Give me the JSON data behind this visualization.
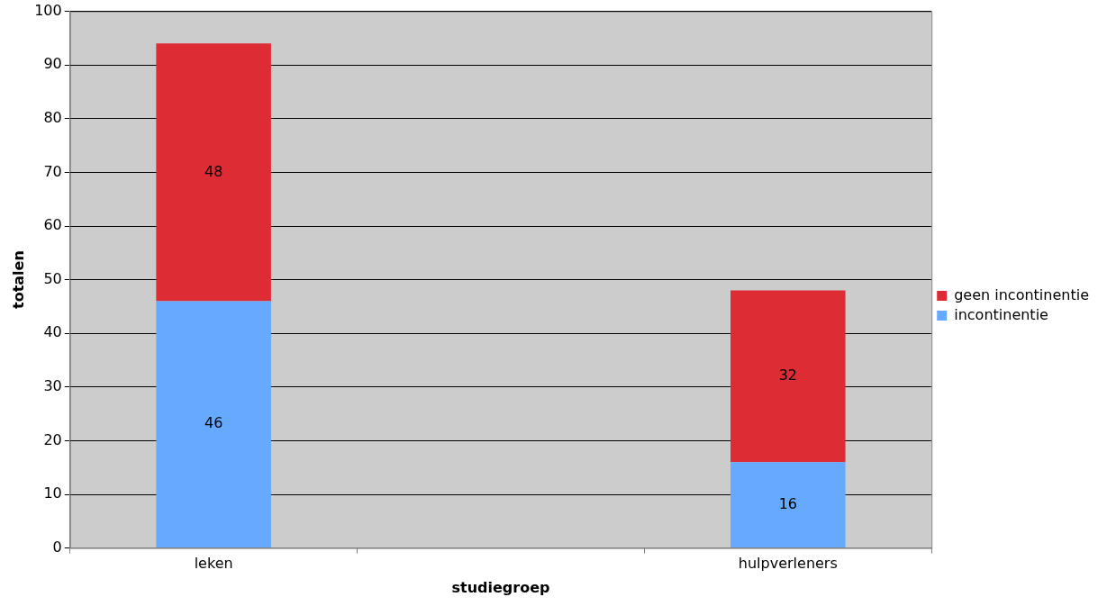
{
  "chart_data": {
    "type": "bar",
    "xlabel": "studiegroep",
    "ylabel": "totalen",
    "categories": [
      "leken",
      null,
      "hulpverleners"
    ],
    "series": [
      {
        "name": "incontinentie",
        "color": "#66aaff",
        "values": [
          46,
          null,
          16
        ]
      },
      {
        "name": "geen incontinentie",
        "color": "#dd2c34",
        "values": [
          48,
          null,
          32
        ]
      }
    ],
    "stacked": true,
    "ylim": [
      0,
      100
    ],
    "yticks": [
      0,
      10,
      20,
      30,
      40,
      50,
      60,
      70,
      80,
      90,
      100
    ],
    "grid": "y",
    "legend": "right",
    "data_labels": true
  }
}
